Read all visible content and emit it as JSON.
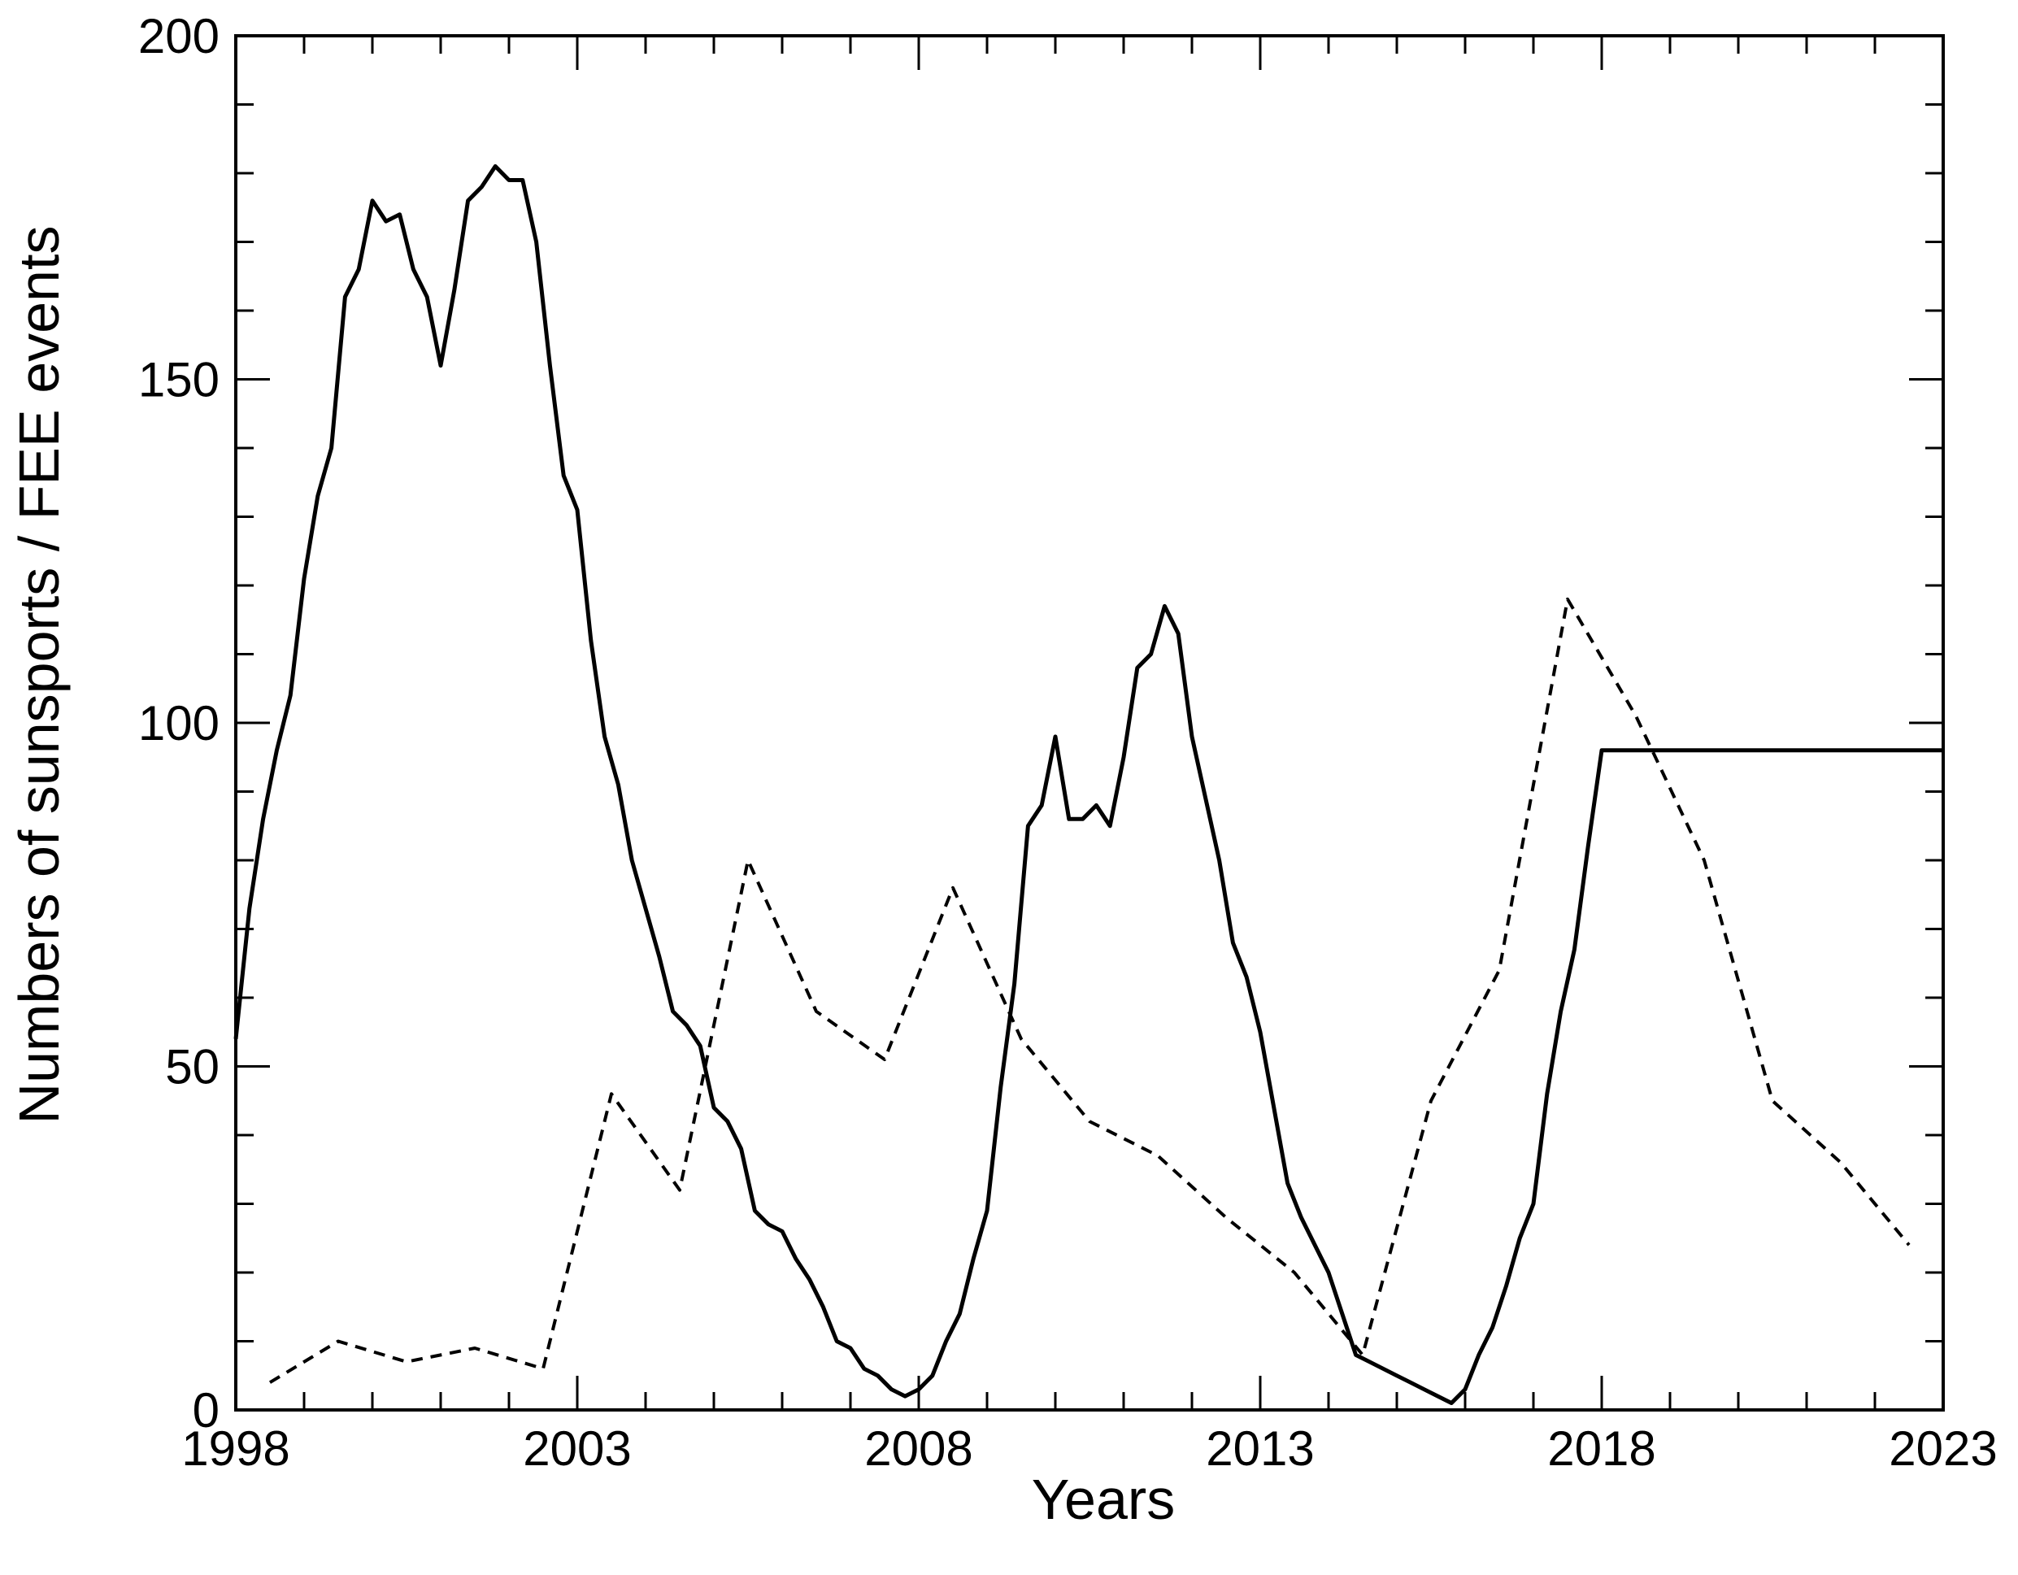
{
  "chart_data": {
    "type": "line",
    "title": "",
    "xlabel": "Years",
    "ylabel": "Numbers of sunsports / FEE events",
    "xlim": [
      1998,
      2023
    ],
    "ylim": [
      0,
      200
    ],
    "x_ticks": [
      1998,
      2003,
      2008,
      2013,
      2018,
      2023
    ],
    "x_tick_labels": [
      "1998",
      "2003",
      "2008",
      "2013",
      "2018",
      "2023"
    ],
    "y_ticks": [
      0,
      50,
      100,
      150,
      200
    ],
    "y_tick_labels": [
      "0",
      "50",
      "100",
      "150",
      "200"
    ],
    "x_minor_step": 1,
    "y_minor_step": 10,
    "grid": false,
    "legend": "none",
    "series": [
      {
        "style": "solid",
        "color": "#000000",
        "x": [
          1998.0,
          1998.2,
          1998.4,
          1998.6,
          1998.8,
          1999.0,
          1999.2,
          1999.4,
          1999.6,
          1999.8,
          2000.0,
          2000.2,
          2000.4,
          2000.6,
          2000.8,
          2001.0,
          2001.2,
          2001.4,
          2001.6,
          2001.8,
          2002.0,
          2002.2,
          2002.4,
          2002.6,
          2002.8,
          2003.0,
          2003.2,
          2003.4,
          2003.6,
          2003.8,
          2004.0,
          2004.2,
          2004.4,
          2004.6,
          2004.8,
          2005.0,
          2005.2,
          2005.4,
          2005.6,
          2005.8,
          2006.0,
          2006.2,
          2006.4,
          2006.6,
          2006.8,
          2007.0,
          2007.2,
          2007.4,
          2007.6,
          2007.8,
          2008.0,
          2008.2,
          2008.4,
          2008.6,
          2008.8,
          2009.0,
          2009.2,
          2009.4,
          2009.6,
          2009.8,
          2010.0,
          2010.2,
          2010.4,
          2010.6,
          2010.8,
          2011.0,
          2011.2,
          2011.4,
          2011.6,
          2011.8,
          2012.0,
          2012.2,
          2012.4,
          2012.6,
          2012.8,
          2013.0,
          2013.2,
          2013.4,
          2013.6,
          2013.8,
          2014.0,
          2014.2,
          2014.4,
          2014.6,
          2014.8,
          2015.0,
          2015.2,
          2015.4,
          2015.6,
          2015.8,
          2016.0,
          2016.2,
          2016.4,
          2016.6,
          2016.8,
          2017.0,
          2017.2,
          2017.4,
          2017.6,
          2017.8,
          2018.0,
          2018.2,
          2018.4,
          2018.6,
          2018.8,
          2019.0,
          2019.2,
          2019.4,
          2019.6,
          2019.8,
          2020.0,
          2020.2,
          2020.4,
          2020.6,
          2020.8,
          2021.0,
          2021.2,
          2021.4,
          2021.6,
          2021.8,
          2022.0,
          2022.2,
          2022.4,
          2022.6,
          2022.8,
          2023.0,
          2023.2,
          2023.4,
          2023.6,
          2023.8,
          2024.0,
          2024.2,
          2024.4
        ],
        "y": [
          54,
          73,
          86,
          96,
          104,
          121,
          133,
          140,
          162,
          166,
          176,
          173,
          174,
          166,
          162,
          152,
          163,
          176,
          178,
          181,
          179,
          179,
          170,
          152,
          136,
          131,
          112,
          98,
          91,
          80,
          73,
          66,
          58,
          56,
          53,
          44,
          42,
          38,
          29,
          27,
          26,
          22,
          19,
          15,
          10,
          9,
          6,
          5,
          3,
          2,
          3,
          5,
          10,
          14,
          22,
          29,
          47,
          62,
          85,
          88,
          98,
          86,
          86,
          88,
          85,
          95,
          108,
          110,
          117,
          113,
          98,
          89,
          80,
          68,
          63,
          55,
          44,
          33,
          28,
          24,
          20,
          14,
          8,
          7,
          6,
          5,
          4,
          3,
          2,
          1,
          3,
          8,
          12,
          18,
          25,
          30,
          46,
          58,
          67,
          82,
          96,
          96,
          96,
          96,
          96,
          96,
          96,
          96,
          96,
          96,
          96,
          96,
          96,
          96,
          96,
          96,
          96,
          96,
          96,
          96,
          96,
          96,
          96,
          96,
          96,
          96,
          96,
          96,
          96,
          96,
          96,
          96,
          96
        ]
      },
      {
        "style": "dashed",
        "color": "#000000",
        "x": [
          1998.5,
          1999.5,
          2000.5,
          2001.5,
          2002.5,
          2003.5,
          2004.5,
          2005.5,
          2006.5,
          2007.5,
          2008.5,
          2009.5,
          2010.5,
          2011.5,
          2012.5,
          2013.5,
          2014.5,
          2015.5,
          2016.5,
          2017.5,
          2018.5,
          2019.5,
          2020.5,
          2021.5,
          2022.5
        ],
        "y": [
          4,
          10,
          7,
          9,
          6,
          46,
          32,
          80,
          58,
          51,
          76,
          54,
          42,
          37,
          28,
          20,
          8,
          45,
          64,
          118,
          101,
          80,
          45,
          36,
          24
        ]
      }
    ]
  }
}
